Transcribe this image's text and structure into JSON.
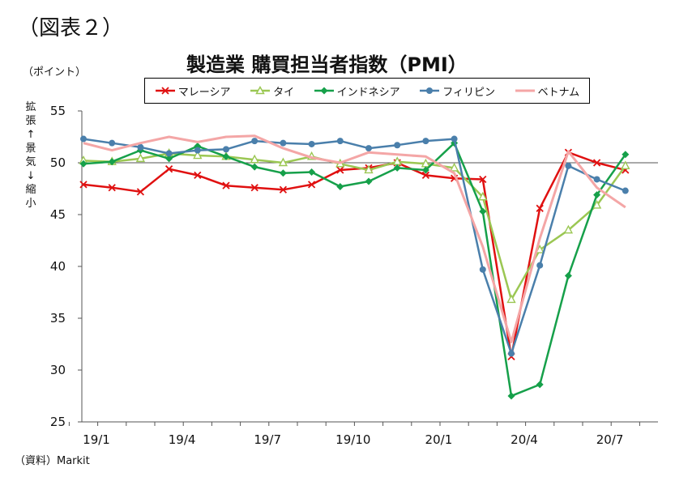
{
  "figure_label": "（図表２）",
  "unit_label": "（ポイント）",
  "source": "（資料）Markit",
  "y_axis_annotation": [
    "拡",
    "張",
    "↑",
    "景",
    "気",
    "↓",
    "縮",
    "小"
  ],
  "chart_data": {
    "type": "line",
    "title": "製造業 購買担当者指数（PMI）",
    "xlabel": "",
    "ylabel": "",
    "ylim": [
      25,
      55
    ],
    "yticks": [
      25,
      30,
      35,
      40,
      45,
      50,
      55
    ],
    "reference_line": 50,
    "x": [
      "19/1",
      "19/2",
      "19/3",
      "19/4",
      "19/5",
      "19/6",
      "19/7",
      "19/8",
      "19/9",
      "19/10",
      "19/11",
      "19/12",
      "20/1",
      "20/2",
      "20/3",
      "20/4",
      "20/5",
      "20/6",
      "20/7",
      "20/8"
    ],
    "x_tick_labels": [
      "19/1",
      "19/4",
      "19/7",
      "19/10",
      "20/1",
      "20/4",
      "20/7"
    ],
    "legend_placement": "top",
    "series": [
      {
        "name": "マレーシア",
        "color": "#e01010",
        "marker": "x",
        "values": [
          47.9,
          47.6,
          47.2,
          49.4,
          48.8,
          47.8,
          47.6,
          47.4,
          47.9,
          49.3,
          49.5,
          50.0,
          48.8,
          48.5,
          48.4,
          31.3,
          45.6,
          51.0,
          50.0,
          49.3
        ]
      },
      {
        "name": "タイ",
        "color": "#9bc753",
        "marker": "triangle",
        "values": [
          50.2,
          50.1,
          50.4,
          50.9,
          50.7,
          50.6,
          50.3,
          50.0,
          50.6,
          49.9,
          49.3,
          50.1,
          49.9,
          49.5,
          46.7,
          36.8,
          41.6,
          43.5,
          45.9,
          49.7
        ]
      },
      {
        "name": "インドネシア",
        "color": "#16a04a",
        "marker": "diamond",
        "values": [
          49.9,
          50.1,
          51.2,
          50.4,
          51.6,
          50.6,
          49.6,
          49.0,
          49.1,
          47.7,
          48.2,
          49.5,
          49.3,
          51.9,
          45.3,
          27.5,
          28.6,
          39.1,
          46.9,
          50.8
        ]
      },
      {
        "name": "フィリピン",
        "color": "#4a7fab",
        "marker": "circle",
        "values": [
          52.3,
          51.9,
          51.5,
          50.9,
          51.2,
          51.3,
          52.1,
          51.9,
          51.8,
          52.1,
          51.4,
          51.7,
          52.1,
          52.3,
          39.7,
          31.6,
          40.1,
          49.7,
          48.4,
          47.3
        ]
      },
      {
        "name": "ベトナム",
        "color": "#f4a6a6",
        "marker": "none",
        "values": [
          51.9,
          51.2,
          51.9,
          52.5,
          52.0,
          52.5,
          52.6,
          51.4,
          50.5,
          50.0,
          51.0,
          50.8,
          50.6,
          49.0,
          41.9,
          32.7,
          42.7,
          51.1,
          47.6,
          45.7
        ]
      }
    ]
  }
}
